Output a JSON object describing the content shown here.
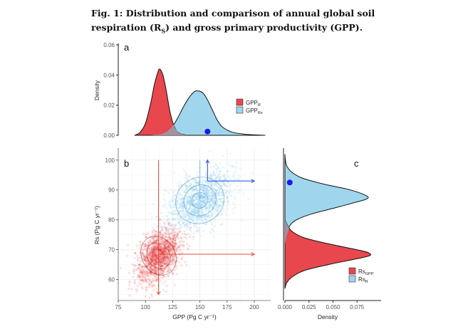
{
  "caption": {
    "line1": "Fig. 1: Distribution and comparison of annual global soil",
    "line2a": "respiration (R",
    "line2sub": "S",
    "line2b": ") and gross primary productivity (GPP)."
  },
  "colors": {
    "red": "#e8474d",
    "blue": "#9fd6ee",
    "overlap": "#9a9aaa",
    "dot": "#1a1aee",
    "arrow_red": "#e84a3a",
    "arrow_blue": "#2a4ad8"
  },
  "chart_data": [
    {
      "panel": "a",
      "type": "area",
      "ylabel": "Density",
      "xlim": [
        75,
        215
      ],
      "ylim": [
        0,
        0.06
      ],
      "yticks": [
        0.0,
        0.02,
        0.04,
        0.06
      ],
      "ytick_labels": [
        "0.00",
        "0.02",
        "0.04",
        "0.06"
      ],
      "legend": {
        "position": "right",
        "entries": [
          {
            "base": "GPP",
            "sub": "R",
            "color": "#e8474d"
          },
          {
            "base": "GPP",
            "sub": "Rs",
            "color": "#9fd6ee"
          }
        ]
      },
      "series": [
        {
          "name": "GPP_R",
          "x": [
            90,
            95,
            100,
            105,
            108,
            111,
            113,
            116,
            119,
            123,
            127,
            131,
            136,
            142
          ],
          "y": [
            0.0,
            0.002,
            0.008,
            0.022,
            0.033,
            0.041,
            0.044,
            0.04,
            0.03,
            0.014,
            0.005,
            0.0015,
            0.0004,
            0.0
          ]
        },
        {
          "name": "GPP_Rs",
          "x": [
            105,
            115,
            120,
            125,
            130,
            135,
            140,
            145,
            148,
            152,
            155,
            158,
            162,
            166,
            170,
            175,
            180,
            190,
            200,
            210
          ],
          "y": [
            0.0,
            0.0008,
            0.0025,
            0.006,
            0.012,
            0.019,
            0.025,
            0.029,
            0.0295,
            0.0285,
            0.026,
            0.022,
            0.016,
            0.01,
            0.006,
            0.0035,
            0.002,
            0.0008,
            0.0003,
            0.0
          ]
        }
      ],
      "point": {
        "x": 157,
        "y": 0.0025
      }
    },
    {
      "panel": "b",
      "type": "scatter",
      "xlabel": "GPP (Pg C yr⁻¹)",
      "ylabel": "Rs (Pg C yr⁻¹)",
      "xlim": [
        75,
        215
      ],
      "ylim": [
        53,
        104
      ],
      "xticks": [
        75,
        100,
        125,
        150,
        175,
        200
      ],
      "yticks": [
        60,
        70,
        80,
        90,
        100
      ],
      "clusters": [
        {
          "name": "red",
          "center": [
            112,
            68
          ],
          "spread": [
            10,
            4.5
          ]
        },
        {
          "name": "blue",
          "center": [
            150,
            86.5
          ],
          "spread": [
            15,
            5
          ]
        }
      ],
      "arrows": [
        {
          "color": "red",
          "from": [
            112,
            100
          ],
          "to": [
            112,
            55
          ]
        },
        {
          "color": "red",
          "from": [
            112,
            68.5
          ],
          "to": [
            200,
            68.5
          ]
        },
        {
          "color": "blue",
          "from": [
            157,
            93
          ],
          "to": [
            157,
            100
          ]
        },
        {
          "color": "blue",
          "from": [
            157,
            93
          ],
          "to": [
            200,
            93
          ]
        },
        {
          "color": "blue",
          "from": [
            150,
            100
          ],
          "to": [
            150,
            87
          ]
        }
      ]
    },
    {
      "panel": "c",
      "type": "area",
      "xlabel": "Density",
      "xlim": [
        0,
        0.1
      ],
      "ylim": [
        53,
        104
      ],
      "xticks": [
        0,
        0.025,
        0.05,
        0.075
      ],
      "xtick_labels": [
        "0.000",
        "0.025",
        "0.050",
        "0.075"
      ],
      "legend": {
        "position": "bottom-right",
        "entries": [
          {
            "base": "Rs",
            "sub": "GPP",
            "color": "#e8474d"
          },
          {
            "base": "Rs",
            "sub": "R",
            "color": "#9fd6ee"
          }
        ]
      },
      "series": [
        {
          "name": "Rs_GPP",
          "y": [
            57,
            59,
            61,
            63,
            65,
            67,
            68,
            69,
            70,
            72,
            74,
            76,
            78,
            80
          ],
          "x": [
            0.0,
            0.002,
            0.008,
            0.02,
            0.045,
            0.075,
            0.088,
            0.087,
            0.075,
            0.045,
            0.02,
            0.008,
            0.003,
            0.0
          ]
        },
        {
          "name": "Rs_R",
          "y": [
            72,
            75,
            78,
            80,
            82,
            84,
            86,
            87,
            88,
            90,
            92,
            94,
            96,
            98,
            100,
            102
          ],
          "x": [
            0.0,
            0.002,
            0.005,
            0.012,
            0.028,
            0.052,
            0.075,
            0.085,
            0.085,
            0.068,
            0.04,
            0.018,
            0.007,
            0.002,
            0.0005,
            0.0
          ]
        }
      ],
      "point": {
        "x": 0.005,
        "y": 92.5
      }
    }
  ],
  "panels": {
    "a": "a",
    "b": "b",
    "c": "c"
  }
}
